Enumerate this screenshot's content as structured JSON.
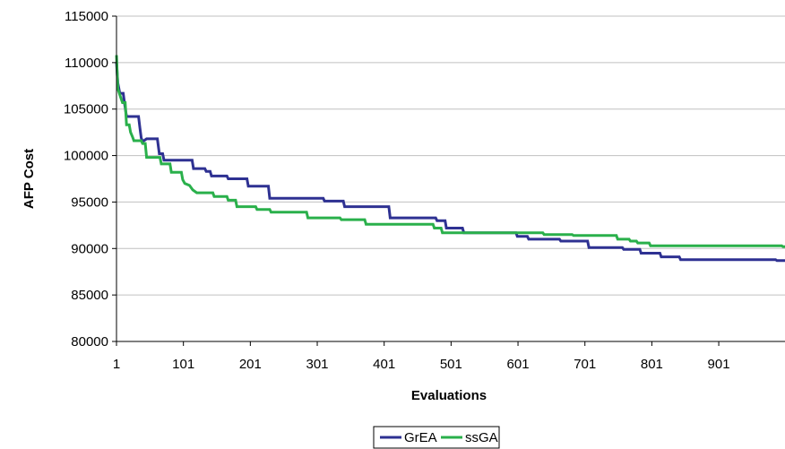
{
  "chart_data": {
    "type": "line",
    "title": "",
    "xlabel": "Evaluations",
    "ylabel": "AFP Cost",
    "xlim": [
      1,
      1000
    ],
    "ylim": [
      80000,
      115000
    ],
    "x_ticks": [
      1,
      101,
      201,
      301,
      401,
      501,
      601,
      701,
      801,
      901
    ],
    "y_ticks": [
      80000,
      85000,
      90000,
      95000,
      100000,
      105000,
      110000,
      115000
    ],
    "grid": "horizontal",
    "legend": "bottom",
    "series": [
      {
        "name": "GrEA",
        "color": "#2e3192",
        "step": true,
        "points": [
          [
            1,
            110000
          ],
          [
            3,
            107800
          ],
          [
            6,
            106700
          ],
          [
            11,
            106700
          ],
          [
            13,
            105600
          ],
          [
            16,
            104200
          ],
          [
            34,
            104200
          ],
          [
            36,
            103000
          ],
          [
            38,
            101900
          ],
          [
            40,
            101500
          ],
          [
            46,
            101800
          ],
          [
            62,
            101800
          ],
          [
            65,
            100200
          ],
          [
            70,
            100200
          ],
          [
            72,
            99500
          ],
          [
            114,
            99500
          ],
          [
            116,
            98600
          ],
          [
            133,
            98600
          ],
          [
            135,
            98300
          ],
          [
            141,
            98300
          ],
          [
            143,
            97800
          ],
          [
            166,
            97800
          ],
          [
            168,
            97500
          ],
          [
            196,
            97500
          ],
          [
            198,
            96700
          ],
          [
            228,
            96700
          ],
          [
            230,
            95400
          ],
          [
            310,
            95400
          ],
          [
            312,
            95100
          ],
          [
            340,
            95100
          ],
          [
            342,
            94500
          ],
          [
            408,
            94500
          ],
          [
            410,
            93300
          ],
          [
            478,
            93300
          ],
          [
            480,
            93000
          ],
          [
            492,
            93000
          ],
          [
            494,
            92200
          ],
          [
            518,
            92200
          ],
          [
            520,
            91700
          ],
          [
            598,
            91700
          ],
          [
            600,
            91300
          ],
          [
            615,
            91300
          ],
          [
            617,
            91000
          ],
          [
            663,
            91000
          ],
          [
            665,
            90800
          ],
          [
            705,
            90800
          ],
          [
            707,
            90100
          ],
          [
            757,
            90100
          ],
          [
            759,
            89900
          ],
          [
            783,
            89900
          ],
          [
            785,
            89500
          ],
          [
            813,
            89500
          ],
          [
            815,
            89100
          ],
          [
            842,
            89100
          ],
          [
            844,
            88800
          ],
          [
            986,
            88800
          ],
          [
            988,
            88700
          ],
          [
            1000,
            88700
          ]
        ]
      },
      {
        "name": "ssGA",
        "color": "#2ab04b",
        "step": true,
        "points": [
          [
            1,
            110800
          ],
          [
            3,
            107200
          ],
          [
            7,
            106300
          ],
          [
            10,
            105700
          ],
          [
            14,
            105700
          ],
          [
            16,
            103300
          ],
          [
            20,
            103300
          ],
          [
            22,
            102500
          ],
          [
            25,
            102000
          ],
          [
            27,
            101600
          ],
          [
            38,
            101600
          ],
          [
            40,
            101300
          ],
          [
            44,
            101300
          ],
          [
            46,
            99800
          ],
          [
            66,
            99800
          ],
          [
            68,
            99100
          ],
          [
            81,
            99100
          ],
          [
            83,
            98200
          ],
          [
            98,
            98200
          ],
          [
            100,
            97400
          ],
          [
            103,
            97000
          ],
          [
            110,
            96800
          ],
          [
            115,
            96300
          ],
          [
            121,
            96000
          ],
          [
            145,
            96000
          ],
          [
            147,
            95600
          ],
          [
            166,
            95600
          ],
          [
            168,
            95200
          ],
          [
            179,
            95200
          ],
          [
            181,
            94500
          ],
          [
            209,
            94500
          ],
          [
            211,
            94200
          ],
          [
            230,
            94200
          ],
          [
            232,
            93900
          ],
          [
            285,
            93900
          ],
          [
            287,
            93300
          ],
          [
            335,
            93300
          ],
          [
            337,
            93100
          ],
          [
            372,
            93100
          ],
          [
            374,
            92600
          ],
          [
            474,
            92600
          ],
          [
            476,
            92200
          ],
          [
            486,
            92200
          ],
          [
            488,
            91700
          ],
          [
            638,
            91700
          ],
          [
            640,
            91500
          ],
          [
            682,
            91500
          ],
          [
            684,
            91400
          ],
          [
            748,
            91400
          ],
          [
            750,
            91000
          ],
          [
            767,
            91000
          ],
          [
            769,
            90800
          ],
          [
            778,
            90800
          ],
          [
            780,
            90600
          ],
          [
            797,
            90600
          ],
          [
            799,
            90300
          ],
          [
            995,
            90300
          ],
          [
            997,
            90200
          ],
          [
            1000,
            90200
          ]
        ]
      }
    ]
  }
}
